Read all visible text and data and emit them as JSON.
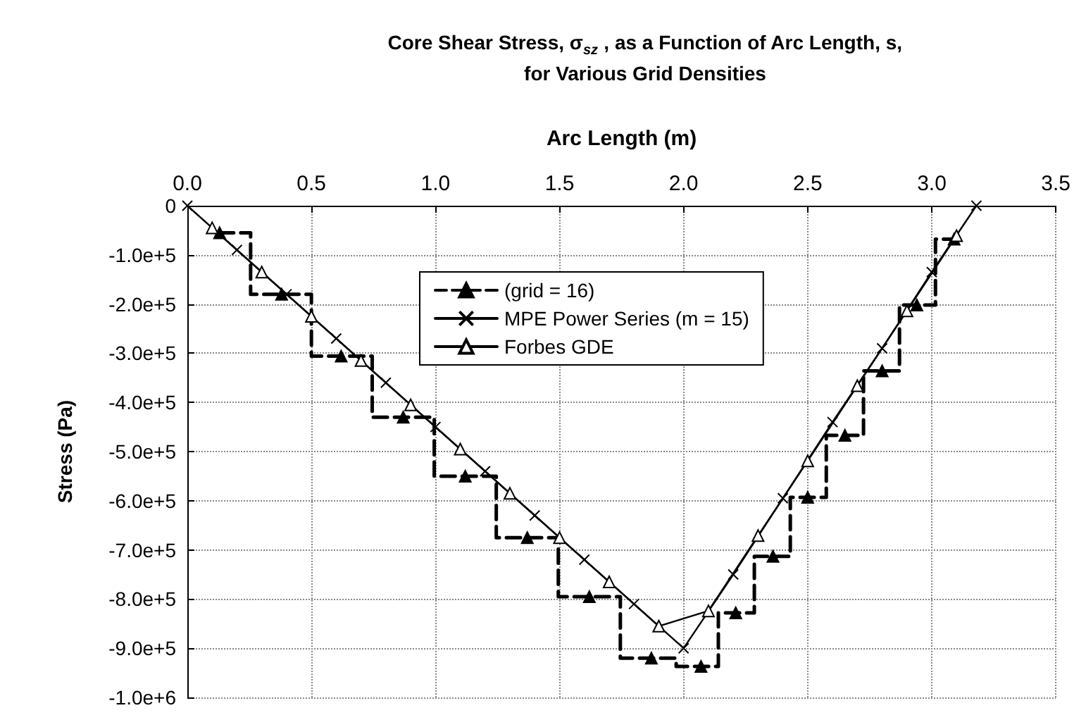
{
  "chart_data": {
    "type": "line",
    "title": "Core Shear Stress, σ$_{sz}$ , as a Function of Arc Length, s,\nfor Various Grid Densities",
    "xlabel": "Arc Length (m)",
    "ylabel": "Stress (Pa)",
    "xlim": [
      0,
      3.5
    ],
    "xticks": [
      {
        "value": 0,
        "label": "0.0"
      },
      0.5,
      {
        "value": 1,
        "label": "1.0"
      },
      1.5,
      {
        "value": 2,
        "label": "2.0"
      },
      2.5,
      {
        "value": 3,
        "label": "3.0"
      },
      3.5
    ],
    "ylim": [
      -1000000,
      0
    ],
    "yticks": [
      {
        "value": -1000000,
        "label": "-1.0e+6"
      },
      {
        "value": -900000,
        "label": "-9.0e+5"
      },
      {
        "value": -800000,
        "label": "-8.0e+5"
      },
      {
        "value": -700000,
        "label": "-7.0e+5"
      },
      {
        "value": -600000,
        "label": "-6.0e+5"
      },
      {
        "value": -500000,
        "label": "-5.0e+5"
      },
      {
        "value": -400000,
        "label": "-4.0e+5"
      },
      {
        "value": -300000,
        "label": "-3.0e+5"
      },
      {
        "value": -200000,
        "label": "-2.0e+5"
      },
      {
        "value": -100000,
        "label": "-1.0e+5"
      },
      0
    ],
    "grid": true,
    "legend": "top",
    "series": [
      {
        "type": "step",
        "name": "(grid = 16)",
        "color": "#000000",
        "marker": "triangle",
        "line_style": "dashed",
        "x": [
          0.13,
          0.38,
          0.62,
          0.87,
          1.12,
          1.37,
          1.62,
          1.87,
          2.07,
          2.21,
          2.36,
          2.5,
          2.65,
          2.8,
          2.94,
          3.09
        ],
        "values": [
          -55000,
          -180000,
          -306000,
          -430000,
          -550000,
          -675000,
          -795000,
          -920000,
          -937000,
          -828000,
          -713000,
          -593000,
          -467000,
          -336000,
          -202000,
          -68000
        ]
      },
      {
        "name": "MPE Power Series (m = 15)",
        "color": "#000000",
        "marker": "cross",
        "line_style": "solid",
        "x": [
          0,
          0.2,
          0.4,
          0.6,
          0.8,
          1.0,
          1.2,
          1.4,
          1.6,
          1.8,
          2.0,
          2.2,
          2.4,
          2.6,
          2.8,
          3.0,
          3.18
        ],
        "values": [
          0,
          -90000,
          -180000,
          -270000,
          -360000,
          -450000,
          -540000,
          -630000,
          -720000,
          -810000,
          -900000,
          -750000,
          -595000,
          -440000,
          -290000,
          -135000,
          0
        ]
      },
      {
        "name": "Forbes GDE",
        "color": "#000000",
        "marker": "triangle-open",
        "line_style": "solid",
        "x": [
          0.1,
          0.3,
          0.5,
          0.7,
          0.9,
          1.1,
          1.3,
          1.5,
          1.7,
          1.9,
          2.1,
          2.3,
          2.5,
          2.7,
          2.9,
          3.1
        ],
        "values": [
          -45000,
          -135000,
          -225000,
          -315000,
          -405000,
          -495000,
          -585000,
          -675000,
          -765000,
          -855000,
          -824000,
          -671000,
          -519000,
          -366000,
          -214000,
          -61000
        ]
      }
    ]
  }
}
